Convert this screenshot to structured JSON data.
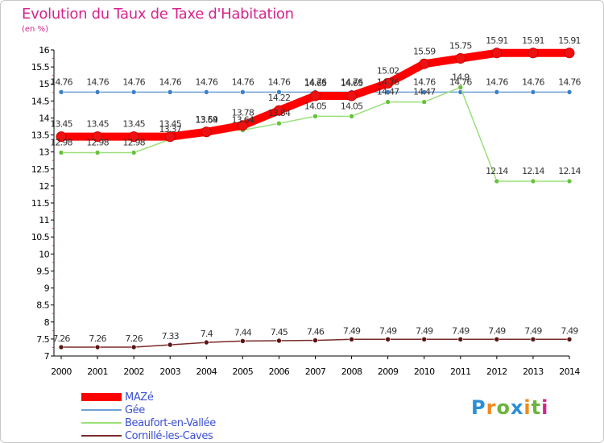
{
  "title": "Evolution du Taux de Taxe d'Habitation",
  "unit_label": "(en %)",
  "logo_text": "Proxiti",
  "colors": {
    "title": "#d6248c",
    "axis": "#000000",
    "grid": "#d8d8d8",
    "tick_label": "#000000",
    "value_label": "#333333"
  },
  "chart_data": {
    "type": "line",
    "title": "Evolution du Taux de Taxe d'Habitation",
    "ylabel": "(en %)",
    "xlabel": "",
    "ylim": [
      7,
      16
    ],
    "y_ticks": [
      7,
      7.5,
      8,
      8.5,
      9,
      9.5,
      10,
      10.5,
      11,
      11.5,
      12,
      12.5,
      13,
      13.5,
      14,
      14.5,
      15,
      15.5,
      16
    ],
    "x": [
      "2000",
      "2001",
      "2002",
      "2003",
      "2004",
      "2005",
      "2006",
      "2007",
      "2008",
      "2009",
      "2010",
      "2011",
      "2012",
      "2013",
      "2014"
    ],
    "legend_position": "bottom-left",
    "grid": false,
    "series": [
      {
        "name": "MAZé",
        "color": "#ff0000",
        "marker_color": "#ee1111",
        "width": 10,
        "values": [
          13.45,
          13.45,
          13.45,
          13.45,
          13.59,
          13.78,
          14.22,
          14.65,
          14.65,
          15.02,
          15.59,
          15.75,
          15.91,
          15.91,
          15.91
        ]
      },
      {
        "name": "Gée",
        "color": "#6f9fd8",
        "marker_color": "#3b7fc4",
        "width": 1.5,
        "values": [
          14.76,
          14.76,
          14.76,
          14.76,
          14.76,
          14.76,
          14.76,
          14.76,
          14.76,
          14.76,
          14.76,
          14.76,
          14.76,
          14.76,
          14.76
        ]
      },
      {
        "name": "Beaufort-en-Vallée",
        "color": "#9ae07a",
        "marker_color": "#66c23a",
        "width": 1.5,
        "values": [
          12.98,
          12.98,
          12.98,
          13.37,
          13.64,
          13.64,
          13.84,
          14.05,
          14.05,
          14.47,
          14.47,
          14.9,
          12.14,
          12.14,
          12.14
        ]
      },
      {
        "name": "Cornillé-les-Caves",
        "color": "#7a2a2a",
        "marker_color": "#5a1414",
        "width": 1.5,
        "values": [
          7.26,
          7.26,
          7.26,
          7.33,
          7.4,
          7.44,
          7.45,
          7.46,
          7.49,
          7.49,
          7.49,
          7.49,
          7.49,
          7.49,
          7.49
        ]
      }
    ],
    "data_labels": [
      {
        "series": 0,
        "labels": [
          "13.45",
          "13.45",
          "13.45",
          "13.45",
          "13.59",
          "13.78",
          "14.22",
          "14.65",
          "14.65",
          "15.02",
          "15.59",
          "15.75",
          "15.91",
          "15.91",
          "15.91"
        ]
      },
      {
        "series": 1,
        "labels": [
          "14.76",
          "14.76",
          "14.76",
          "14.76",
          "14.76",
          "14.76",
          "14.76",
          "14.76",
          "14.76",
          "14.76",
          "14.76",
          "14.76",
          "14.76",
          "14.76",
          "14.76"
        ]
      },
      {
        "series": 2,
        "labels": [
          "12.98",
          "12.98",
          "12.98",
          "13.37",
          "13.64",
          "13.64",
          "13.84",
          "14.05",
          "14.05",
          "14.47",
          "14.47",
          "14.9",
          "12.14",
          "12.14",
          "12.14"
        ]
      },
      {
        "series": 3,
        "labels": [
          "7.26",
          "7.26",
          "7.26",
          "7.33",
          "7.4",
          "7.44",
          "7.45",
          "7.46",
          "7.49",
          "7.49",
          "7.49",
          "7.49",
          "7.49",
          "7.49",
          "7.49"
        ]
      }
    ]
  }
}
